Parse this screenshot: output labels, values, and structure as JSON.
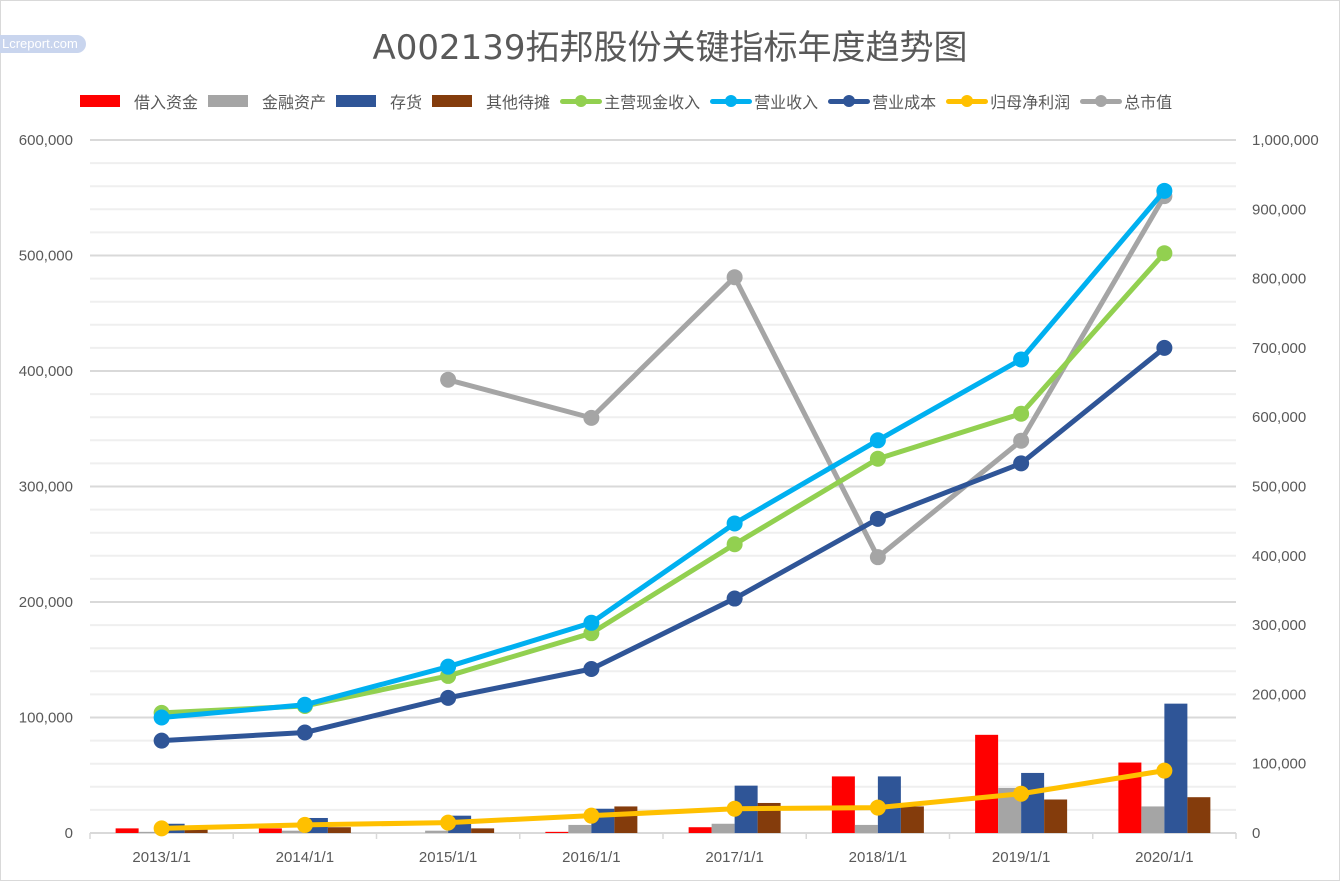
{
  "watermark": "Lcreport.com",
  "chart_data": {
    "type": "bar+line",
    "title": "A002139拓邦股份关键指标年度趋势图",
    "categories": [
      "2013/1/1",
      "2014/1/1",
      "2015/1/1",
      "2016/1/1",
      "2017/1/1",
      "2018/1/1",
      "2019/1/1",
      "2020/1/1"
    ],
    "y_left": {
      "min": 0,
      "max": 600000,
      "ticks": [
        0,
        100000,
        200000,
        300000,
        400000,
        500000,
        600000
      ],
      "tick_labels": [
        "0",
        "100,000",
        "200,000",
        "300,000",
        "400,000",
        "500,000",
        "600,000"
      ],
      "minor_step": 20000
    },
    "y_right": {
      "min": 0,
      "max": 1000000,
      "ticks": [
        0,
        100000,
        200000,
        300000,
        400000,
        500000,
        600000,
        700000,
        800000,
        900000,
        1000000
      ],
      "tick_labels": [
        "0",
        "100,000",
        "200,000",
        "300,000",
        "400,000",
        "500,000",
        "600,000",
        "700,000",
        "800,000",
        "900,000",
        "1,000,000"
      ]
    },
    "grid": true,
    "legend_position": "top",
    "bar_series": [
      {
        "name": "借入资金",
        "color": "#ff0000",
        "axis": "left",
        "values": [
          4000,
          4000,
          0,
          1000,
          5000,
          49000,
          85000,
          61000
        ]
      },
      {
        "name": "金融资产",
        "color": "#a5a5a5",
        "axis": "left",
        "values": [
          1000,
          2000,
          2000,
          7000,
          8000,
          7000,
          39000,
          23000
        ]
      },
      {
        "name": "存货",
        "color": "#2f5597",
        "axis": "left",
        "values": [
          8000,
          13000,
          15000,
          21000,
          41000,
          49000,
          52000,
          112000
        ]
      },
      {
        "name": "其他待摊",
        "color": "#843c0c",
        "axis": "left",
        "values": [
          3000,
          5000,
          4000,
          23000,
          26000,
          23000,
          29000,
          31000
        ]
      }
    ],
    "line_series": [
      {
        "name": "主营现金收入",
        "color": "#92d050",
        "axis": "left",
        "values": [
          104000,
          110000,
          136000,
          173000,
          250000,
          324000,
          363000,
          502000
        ]
      },
      {
        "name": "营业收入",
        "color": "#00b0f0",
        "axis": "left",
        "values": [
          100000,
          111000,
          144000,
          182000,
          268000,
          340000,
          410000,
          556000
        ]
      },
      {
        "name": "营业成本",
        "color": "#2f5597",
        "axis": "left",
        "values": [
          80000,
          87000,
          117000,
          142000,
          203000,
          272000,
          320000,
          420000
        ]
      },
      {
        "name": "归母净利润",
        "color": "#ffc000",
        "axis": "left",
        "values": [
          4000,
          7000,
          9000,
          15000,
          21000,
          22000,
          34000,
          54000
        ]
      },
      {
        "name": "总市值",
        "color": "#a5a5a5",
        "axis": "right",
        "values": [
          null,
          null,
          654000,
          599000,
          802000,
          398000,
          566000,
          919000
        ]
      }
    ]
  }
}
